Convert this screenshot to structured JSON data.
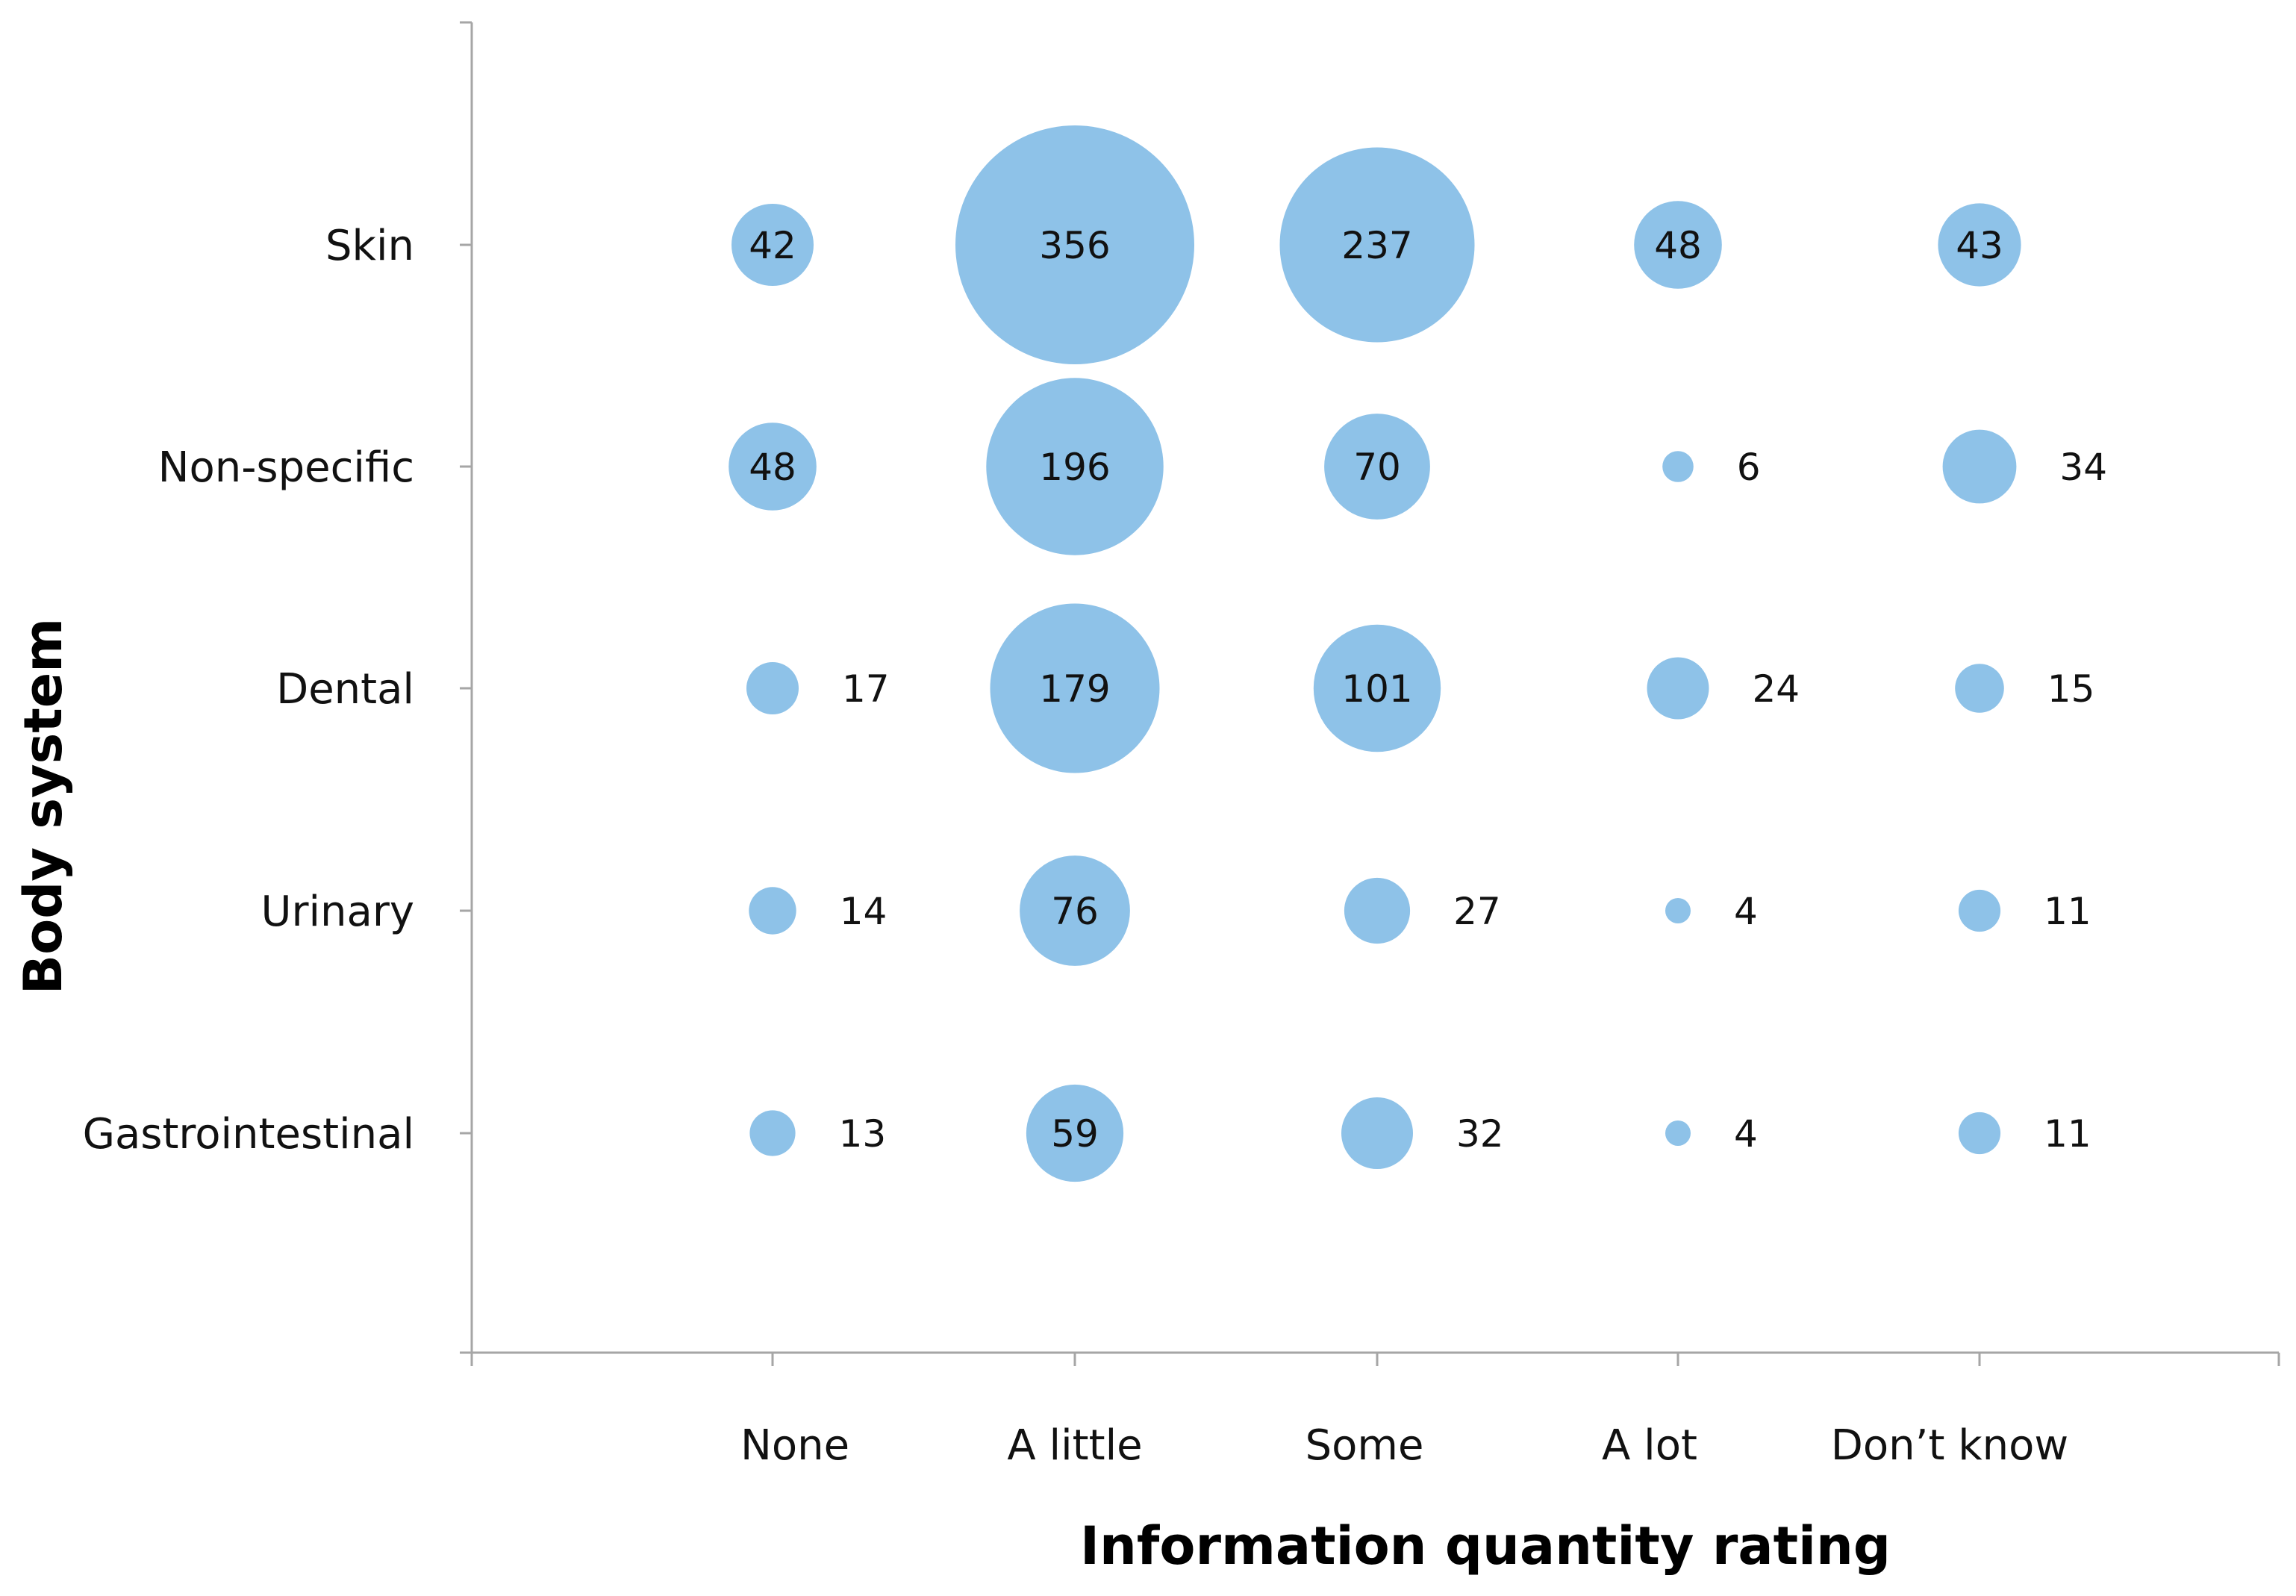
{
  "chart_data": {
    "type": "bubble",
    "title": "",
    "xlabel": "Information quantity rating",
    "ylabel": "Body system",
    "x_categories": [
      "None",
      "A little",
      "Some",
      "A lot",
      "Don’t know"
    ],
    "y_categories": [
      "Skin",
      "Non-specific",
      "Dental",
      "Urinary",
      "Gastrointestinal"
    ],
    "values": [
      [
        42,
        356,
        237,
        48,
        43
      ],
      [
        48,
        196,
        70,
        6,
        34
      ],
      [
        17,
        179,
        101,
        24,
        15
      ],
      [
        14,
        76,
        27,
        4,
        11
      ],
      [
        13,
        59,
        32,
        4,
        11
      ]
    ],
    "bubble_color": "#8ec2e8",
    "grid": false,
    "legend": "none"
  }
}
